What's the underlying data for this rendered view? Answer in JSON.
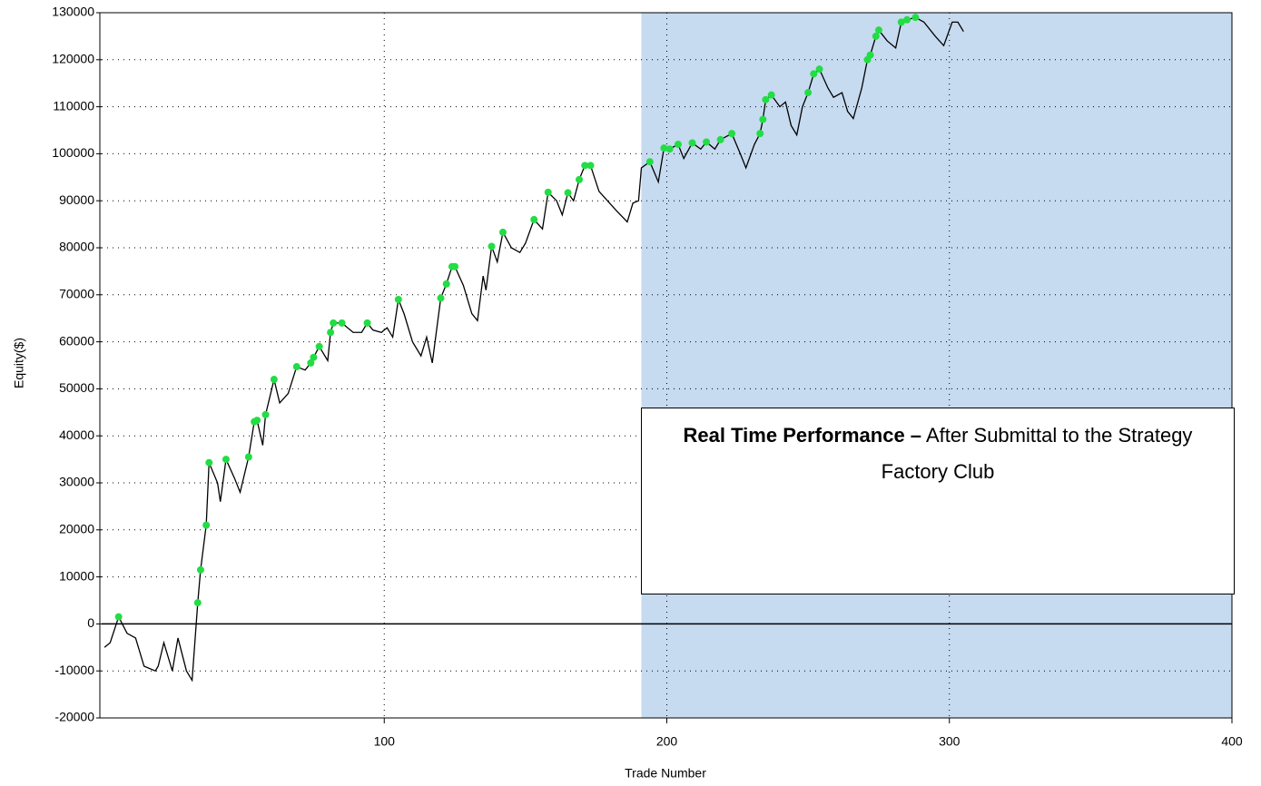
{
  "chart_data": {
    "type": "line",
    "x_label": "Trade Number",
    "y_label": "Equity($)",
    "xlim": [
      0,
      400
    ],
    "ylim": [
      -20000,
      130000
    ],
    "xticks": [
      100,
      200,
      300,
      400
    ],
    "yticks": [
      -20000,
      -10000,
      0,
      10000,
      20000,
      30000,
      40000,
      50000,
      60000,
      70000,
      80000,
      90000,
      100000,
      110000,
      120000,
      130000
    ],
    "grid": true,
    "shaded_region": {
      "xlim": [
        191,
        400
      ],
      "color": "#c6daf0"
    },
    "annotation": {
      "bold": "Real Time Performance –",
      "text": "After Submittal to the Strategy Factory Club"
    },
    "x": [
      1,
      3,
      6,
      9,
      12,
      15,
      19,
      20,
      22,
      25,
      27,
      30,
      32,
      34,
      35,
      37,
      38,
      41,
      42,
      44,
      47,
      49,
      52,
      54,
      55,
      57,
      58,
      61,
      63,
      66,
      69,
      72,
      74,
      75,
      77,
      80,
      81,
      82,
      85,
      89,
      92,
      94,
      96,
      99,
      101,
      103,
      105,
      107,
      110,
      113,
      115,
      117,
      120,
      122,
      124,
      125,
      128,
      131,
      133,
      135,
      136,
      138,
      140,
      142,
      145,
      148,
      150,
      153,
      156,
      158,
      161,
      163,
      165,
      167,
      169,
      171,
      173,
      176,
      179,
      182,
      186,
      188,
      190,
      191,
      194,
      197,
      199,
      201,
      204,
      206,
      209,
      212,
      214,
      217,
      219,
      223,
      226,
      228,
      231,
      233,
      234,
      235,
      237,
      240,
      242,
      244,
      246,
      248,
      250,
      252,
      254,
      257,
      259,
      262,
      264,
      266,
      269,
      271,
      272,
      274,
      275,
      278,
      281,
      283,
      285,
      288,
      291,
      295,
      298,
      301,
      303,
      305
    ],
    "series": [
      {
        "color": "#000000",
        "values": [
          -5000,
          -4000,
          1500,
          -2000,
          -3000,
          -9000,
          -10000,
          -9000,
          -4000,
          -10000,
          -3000,
          -10000,
          -12000,
          4500,
          11500,
          21000,
          34300,
          30000,
          26000,
          35000,
          31000,
          28000,
          35500,
          43000,
          43300,
          38000,
          44500,
          52000,
          47000,
          49000,
          54700,
          54000,
          55500,
          56700,
          59000,
          56000,
          62000,
          64000,
          64000,
          62000,
          62000,
          64000,
          62500,
          62000,
          63000,
          61000,
          69000,
          66000,
          60000,
          57000,
          61000,
          55500,
          69300,
          72300,
          76000,
          76000,
          72000,
          66000,
          64500,
          74000,
          71000,
          80300,
          77000,
          83300,
          80000,
          79000,
          81000,
          86000,
          84000,
          91800,
          90000,
          87000,
          91700,
          90000,
          94500,
          97500,
          97500,
          92000,
          90000,
          88000,
          85500,
          89500,
          90000,
          97000,
          98300,
          94000,
          101200,
          101000,
          102000,
          99000,
          102300,
          101000,
          102500,
          101000,
          103000,
          104300,
          100000,
          97000,
          102000,
          104300,
          107300,
          111500,
          112500,
          110000,
          111000,
          106000,
          104000,
          110000,
          113000,
          117000,
          118000,
          114000,
          112000,
          113000,
          109000,
          107500,
          114000,
          120000,
          121000,
          125000,
          126300,
          124000,
          122500,
          128000,
          128500,
          129000,
          128000,
          125000,
          123000,
          128000,
          128000,
          126000
        ]
      }
    ],
    "markers": {
      "color": "#22dd44",
      "x": [
        6,
        34,
        35,
        37,
        38,
        44,
        52,
        54,
        55,
        58,
        61,
        69,
        74,
        75,
        77,
        81,
        82,
        85,
        94,
        105,
        120,
        122,
        124,
        125,
        138,
        142,
        153,
        158,
        165,
        169,
        171,
        173,
        194,
        199,
        201,
        204,
        209,
        214,
        219,
        223,
        233,
        234,
        235,
        237,
        250,
        252,
        254,
        271,
        272,
        274,
        275,
        283,
        285,
        288
      ],
      "values": [
        1500,
        4500,
        11500,
        21000,
        34300,
        35000,
        35500,
        43000,
        43300,
        44500,
        52000,
        54700,
        55500,
        56700,
        59000,
        62000,
        64000,
        64000,
        64000,
        69000,
        69300,
        72300,
        76000,
        76000,
        80300,
        83300,
        86000,
        91800,
        91700,
        94500,
        97500,
        97500,
        98300,
        101200,
        101000,
        102000,
        102300,
        102500,
        103000,
        104300,
        104300,
        107300,
        111500,
        112500,
        113000,
        117000,
        118000,
        120000,
        121000,
        125000,
        126300,
        128000,
        128500,
        129000
      ]
    }
  }
}
